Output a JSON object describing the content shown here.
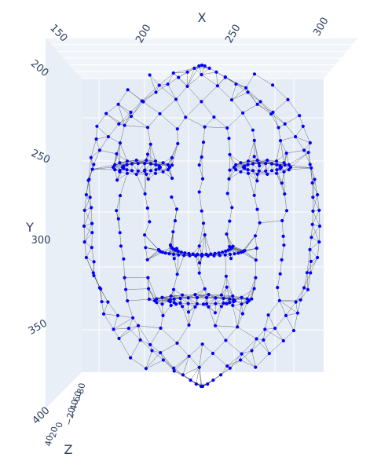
{
  "chart_data": {
    "type": "scatter3d-mesh",
    "title": "",
    "marker_color": "#0000ff",
    "edge_color": "#3a3a3a",
    "pane_color": "#e5ecf6",
    "grid_color": "#ffffff",
    "text_color": "#2a3f5f",
    "x_axis": {
      "title": "X",
      "ticks": [
        "150",
        "200",
        "250",
        "300"
      ],
      "tick_values": [
        150,
        200,
        250,
        300
      ]
    },
    "y_axis": {
      "title": "Y",
      "ticks": [
        "200",
        "250",
        "300",
        "350",
        "400"
      ],
      "tick_values": [
        200,
        250,
        300,
        350,
        400
      ]
    },
    "z_axis": {
      "title": "Z",
      "ticks": [
        "−80",
        "−60",
        "−40",
        "−20",
        "0",
        "20",
        "40"
      ]
    },
    "face_bounds": {
      "x": [
        140,
        310
      ],
      "y": [
        215,
        380
      ]
    },
    "landmark_count": 468
  }
}
